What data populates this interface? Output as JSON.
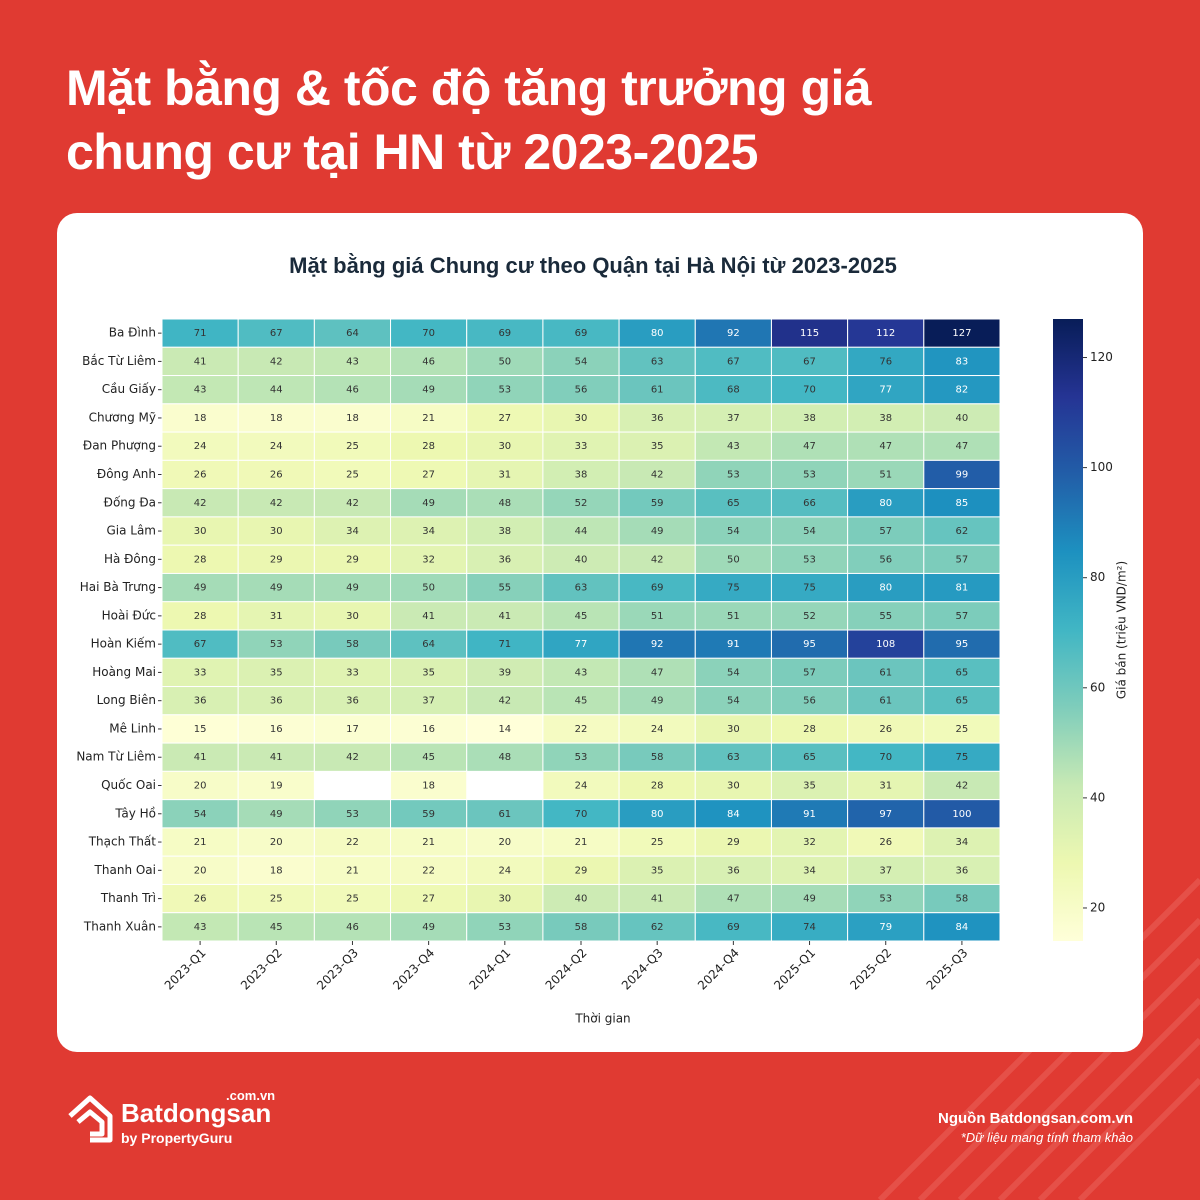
{
  "header": {
    "title": "Mặt bằng & tốc độ tăng trưởng giá chung cư tại HN từ 2023-2025"
  },
  "chart_data": {
    "type": "heatmap",
    "title": "Mặt bằng giá Chung cư theo Quận tại Hà Nội từ 2023-2025",
    "x_label": "Thời gian",
    "colorbar_label": "Giá bán (triệu VND/m²)",
    "columns": [
      "2023-Q1",
      "2023-Q2",
      "2023-Q3",
      "2023-Q4",
      "2024-Q1",
      "2024-Q2",
      "2024-Q3",
      "2024-Q4",
      "2025-Q1",
      "2025-Q2",
      "2025-Q3"
    ],
    "rows": [
      "Ba Đình",
      "Bắc Từ Liêm",
      "Cầu Giấy",
      "Chương Mỹ",
      "Đan Phượng",
      "Đông Anh",
      "Đống Đa",
      "Gia Lâm",
      "Hà Đông",
      "Hai Bà Trưng",
      "Hoài Đức",
      "Hoàn Kiếm",
      "Hoàng Mai",
      "Long Biên",
      "Mê Linh",
      "Nam Từ Liêm",
      "Quốc Oai",
      "Tây Hồ",
      "Thạch Thất",
      "Thanh Oai",
      "Thanh Trì",
      "Thanh Xuân"
    ],
    "values": [
      [
        71,
        67,
        64,
        70,
        69,
        69,
        80,
        92,
        115,
        112,
        127
      ],
      [
        41,
        42,
        43,
        46,
        50,
        54,
        63,
        67,
        67,
        76,
        83
      ],
      [
        43,
        44,
        46,
        49,
        53,
        56,
        61,
        68,
        70,
        77,
        82
      ],
      [
        18,
        18,
        18,
        21,
        27,
        30,
        36,
        37,
        38,
        38,
        40
      ],
      [
        24,
        24,
        25,
        28,
        30,
        33,
        35,
        43,
        47,
        47,
        47
      ],
      [
        26,
        26,
        25,
        27,
        31,
        38,
        42,
        53,
        53,
        51,
        99
      ],
      [
        42,
        42,
        42,
        49,
        48,
        52,
        59,
        65,
        66,
        80,
        85
      ],
      [
        30,
        30,
        34,
        34,
        38,
        44,
        49,
        54,
        54,
        57,
        62
      ],
      [
        28,
        29,
        29,
        32,
        36,
        40,
        42,
        50,
        53,
        56,
        57
      ],
      [
        49,
        49,
        49,
        50,
        55,
        63,
        69,
        75,
        75,
        80,
        81
      ],
      [
        28,
        31,
        30,
        41,
        41,
        45,
        51,
        51,
        52,
        55,
        57
      ],
      [
        67,
        53,
        58,
        64,
        71,
        77,
        92,
        91,
        95,
        108,
        95
      ],
      [
        33,
        35,
        33,
        35,
        39,
        43,
        47,
        54,
        57,
        61,
        65
      ],
      [
        36,
        36,
        36,
        37,
        42,
        45,
        49,
        54,
        56,
        61,
        65
      ],
      [
        15,
        16,
        17,
        16,
        14,
        22,
        24,
        30,
        28,
        26,
        25
      ],
      [
        41,
        41,
        42,
        45,
        48,
        53,
        58,
        63,
        65,
        70,
        75
      ],
      [
        20,
        19,
        null,
        18,
        null,
        24,
        28,
        30,
        35,
        31,
        42
      ],
      [
        54,
        49,
        53,
        59,
        61,
        70,
        80,
        84,
        91,
        97,
        100
      ],
      [
        21,
        20,
        22,
        21,
        20,
        21,
        25,
        29,
        32,
        26,
        34
      ],
      [
        20,
        18,
        21,
        22,
        24,
        29,
        35,
        36,
        34,
        37,
        36
      ],
      [
        26,
        25,
        25,
        27,
        30,
        40,
        41,
        47,
        49,
        53,
        58
      ],
      [
        43,
        45,
        46,
        49,
        53,
        58,
        62,
        69,
        74,
        79,
        84
      ]
    ],
    "clim": [
      14,
      127
    ],
    "cticks": [
      20,
      40,
      60,
      80,
      100,
      120
    ],
    "colormap": [
      "#ffffd9",
      "#edf8b1",
      "#c7e9b4",
      "#7fcdbb",
      "#41b6c4",
      "#1d91c0",
      "#225ea8",
      "#253494",
      "#081d58"
    ]
  },
  "footer": {
    "brand": "Batdongsan",
    "domain": ".com.vn",
    "tagline": "by PropertyGuru",
    "source": "Nguồn Batdongsan.com.vn",
    "note": "*Dữ liệu mang tính tham khảo"
  }
}
